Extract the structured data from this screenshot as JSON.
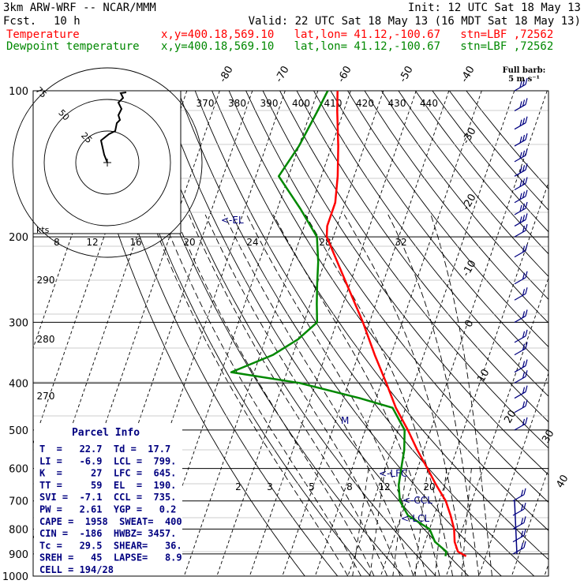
{
  "header": {
    "title": "3km ARW-WRF -- NCAR/MMM",
    "init": "Init: 12 UTC Sat 18 May 13",
    "fcst_label": "Fcst.",
    "fcst_value": "10 h",
    "valid": "Valid: 22 UTC Sat 18 May 13 (16 MDT Sat 18 May 13)",
    "temp_label": "Temperature",
    "dew_label": "Dewpoint temperature",
    "point_info": "x,y=400.18,569.10   lat,lon= 41.12,-100.67   stn=LBF ,72562"
  },
  "colors": {
    "temperature": "#ff0000",
    "dewpoint": "#008800",
    "annotation": "#000080",
    "grid": "#000000"
  },
  "wind_label": {
    "line1": "Full barb:",
    "line2": "5 m s⁻¹"
  },
  "parcel_info": {
    "title": "Parcel Info",
    "rows": [
      "T  =   22.7  Td =  17.7",
      "LI =   -6.9  LCL =  799.",
      "K  =     27  LFC =  645.",
      "TT =     59  EL  =  190.",
      "SVI =  -7.1  CCL =  735.",
      "PW =   2.61  YGP =   0.2",
      "CAPE =  1958  SWEAT=  400",
      "CIN =  -186  HWBZ= 3457.",
      "Tc =   29.5  SHEAR=   36.",
      "SREH =   45  LAPSE=   8.9",
      "CELL = 194/28"
    ]
  },
  "chart_data": {
    "type": "line",
    "xlabel": "",
    "ylabel": "",
    "pressure_levels": [
      100,
      200,
      300,
      400,
      500,
      600,
      700,
      800,
      900,
      1000
    ],
    "isotherm_labels": [
      "-80",
      "-70",
      "-60",
      "-50",
      "-40",
      "-30",
      "-20",
      "-10",
      "0",
      "10",
      "20",
      "30",
      "40"
    ],
    "theta_labels": [
      "370",
      "380",
      "390",
      "400",
      "410",
      "420",
      "430",
      "440"
    ],
    "theta_low_labels": [
      "290",
      "280",
      "270"
    ],
    "mixing_ratio_labels": [
      "2",
      "3",
      "5",
      "8",
      "12",
      "20"
    ],
    "hodograph": {
      "units": "kts",
      "rings": [
        "25",
        "50",
        "75"
      ],
      "speed_axis": [
        "8",
        "12",
        "16",
        "20",
        "24",
        "28",
        "32"
      ]
    },
    "level_annotations": [
      "<-EL",
      "<-LFC",
      "<-CCL",
      "<-LCL",
      "M"
    ],
    "series": [
      {
        "name": "Temperature",
        "points": [
          [
            910,
            24
          ],
          [
            890,
            21
          ],
          [
            850,
            19
          ],
          [
            800,
            17.5
          ],
          [
            750,
            15
          ],
          [
            700,
            12
          ],
          [
            650,
            7.5
          ],
          [
            600,
            3
          ],
          [
            550,
            -2
          ],
          [
            500,
            -7
          ],
          [
            450,
            -13
          ],
          [
            400,
            -18.5
          ],
          [
            350,
            -25
          ],
          [
            300,
            -32
          ],
          [
            250,
            -41
          ],
          [
            200,
            -52
          ],
          [
            190,
            -53
          ],
          [
            170,
            -53
          ],
          [
            150,
            -55
          ],
          [
            130,
            -58
          ],
          [
            110,
            -62
          ],
          [
            100,
            -64
          ]
        ]
      },
      {
        "name": "Dewpoint temperature",
        "points": [
          [
            910,
            17.7
          ],
          [
            890,
            17.5
          ],
          [
            850,
            13
          ],
          [
            800,
            10
          ],
          [
            750,
            2
          ],
          [
            700,
            -2
          ],
          [
            650,
            -4
          ],
          [
            600,
            -5
          ],
          [
            550,
            -6
          ],
          [
            500,
            -8
          ],
          [
            450,
            -14
          ],
          [
            430,
            -25
          ],
          [
            400,
            -45
          ],
          [
            380,
            -67
          ],
          [
            350,
            -56
          ],
          [
            325,
            -50
          ],
          [
            300,
            -46
          ],
          [
            275,
            -48
          ],
          [
            250,
            -50
          ],
          [
            225,
            -52
          ],
          [
            200,
            -55
          ],
          [
            175,
            -63
          ],
          [
            150,
            -73
          ],
          [
            130,
            -70
          ],
          [
            110,
            -68
          ],
          [
            100,
            -67
          ]
        ]
      }
    ],
    "wind_barbs": {
      "units": "m s-1",
      "levels_hpa": [
        100,
        110,
        120,
        130,
        140,
        150,
        160,
        170,
        180,
        190,
        200,
        220,
        250,
        270,
        300,
        330,
        350,
        380,
        400,
        430,
        460,
        500,
        700,
        750,
        800,
        850,
        900
      ]
    }
  }
}
